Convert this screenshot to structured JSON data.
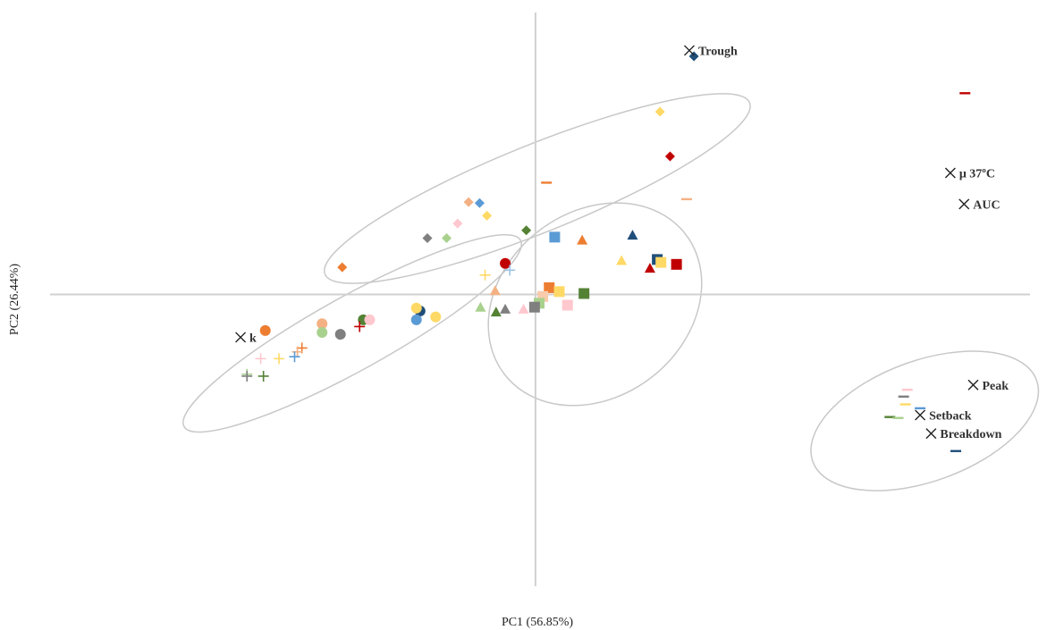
{
  "chart_data": {
    "type": "scatter",
    "xlabel": "PC1 (56.85%)",
    "ylabel": "PC2 (26.44%)",
    "xlim": [
      -5.3,
      5.4
    ],
    "ylim": [
      -3.0,
      2.9
    ],
    "grid": false,
    "legend": "none",
    "palette": {
      "orange": "#ED7D31",
      "light_orange": "#F4B183",
      "salmon": "#F8CBAD",
      "blue": "#5B9BD5",
      "dark_blue": "#1F4E79",
      "navy": "#203864",
      "yellow": "#FFD966",
      "red": "#C00000",
      "dark_red": "#A50021",
      "dark_green": "#548235",
      "green": "#70AD47",
      "light_green": "#A9D18E",
      "grey": "#7F7F7F",
      "pink": "#FFC7CE",
      "light_blue": "#9DC3E6"
    },
    "series": [
      {
        "marker": "diamond",
        "points": [
          {
            "x": 1.73,
            "y": 2.45,
            "color": "#1F4E79"
          },
          {
            "x": 1.36,
            "y": 1.88,
            "color": "#FFD966"
          },
          {
            "x": 1.47,
            "y": 1.42,
            "color": "#C00000"
          },
          {
            "x": -0.73,
            "y": 0.95,
            "color": "#F4B183"
          },
          {
            "x": -0.61,
            "y": 0.94,
            "color": "#5B9BD5"
          },
          {
            "x": -0.85,
            "y": 0.73,
            "color": "#FFC7CE"
          },
          {
            "x": -0.53,
            "y": 0.81,
            "color": "#FFD966"
          },
          {
            "x": -1.18,
            "y": 0.58,
            "color": "#7F7F7F"
          },
          {
            "x": -0.97,
            "y": 0.58,
            "color": "#A9D18E"
          },
          {
            "x": -0.1,
            "y": 0.66,
            "color": "#548235"
          },
          {
            "x": -2.11,
            "y": 0.28,
            "color": "#ED7D31"
          }
        ]
      },
      {
        "marker": "triangle",
        "points": [
          {
            "x": 1.06,
            "y": 0.61,
            "color": "#1F4E79"
          },
          {
            "x": 0.51,
            "y": 0.56,
            "color": "#ED7D31"
          },
          {
            "x": 0.94,
            "y": 0.35,
            "color": "#FFD966"
          },
          {
            "x": 1.25,
            "y": 0.27,
            "color": "#C00000"
          },
          {
            "x": -0.44,
            "y": 0.04,
            "color": "#F4B183"
          },
          {
            "x": -0.6,
            "y": -0.13,
            "color": "#A9D18E"
          },
          {
            "x": -0.43,
            "y": -0.18,
            "color": "#548235"
          },
          {
            "x": -0.33,
            "y": -0.15,
            "color": "#7F7F7F"
          },
          {
            "x": -0.13,
            "y": -0.15,
            "color": "#FFC7CE"
          }
        ]
      },
      {
        "marker": "square",
        "points": [
          {
            "x": 0.21,
            "y": 0.59,
            "color": "#5B9BD5"
          },
          {
            "x": 1.33,
            "y": 0.36,
            "color": "#1F4E79"
          },
          {
            "x": 1.37,
            "y": 0.33,
            "color": "#FFD966"
          },
          {
            "x": 1.54,
            "y": 0.31,
            "color": "#C00000"
          },
          {
            "x": 0.15,
            "y": 0.07,
            "color": "#ED7D31"
          },
          {
            "x": 0.26,
            "y": 0.03,
            "color": "#FFD966"
          },
          {
            "x": 0.53,
            "y": 0.01,
            "color": "#548235"
          },
          {
            "x": 0.08,
            "y": -0.02,
            "color": "#F8CBAD"
          },
          {
            "x": 0.04,
            "y": -0.09,
            "color": "#A9D18E"
          },
          {
            "x": -0.01,
            "y": -0.13,
            "color": "#7F7F7F"
          },
          {
            "x": 0.35,
            "y": -0.11,
            "color": "#FFC7CE"
          }
        ]
      },
      {
        "marker": "circle",
        "points": [
          {
            "x": -0.33,
            "y": 0.32,
            "color": "#C00000"
          },
          {
            "x": -1.26,
            "y": -0.17,
            "color": "#1F4E79"
          },
          {
            "x": -1.3,
            "y": -0.14,
            "color": "#FFD966"
          },
          {
            "x": -1.3,
            "y": -0.26,
            "color": "#5B9BD5"
          },
          {
            "x": -1.09,
            "y": -0.23,
            "color": "#FFD966"
          },
          {
            "x": -1.88,
            "y": -0.26,
            "color": "#548235"
          },
          {
            "x": -1.81,
            "y": -0.26,
            "color": "#FFC7CE"
          },
          {
            "x": -2.33,
            "y": -0.3,
            "color": "#F4B183"
          },
          {
            "x": -2.33,
            "y": -0.39,
            "color": "#A9D18E"
          },
          {
            "x": -2.13,
            "y": -0.41,
            "color": "#7F7F7F"
          },
          {
            "x": -2.95,
            "y": -0.37,
            "color": "#ED7D31"
          }
        ]
      },
      {
        "marker": "plus",
        "points": [
          {
            "x": -0.28,
            "y": 0.25,
            "color": "#9DC3E6"
          },
          {
            "x": -0.55,
            "y": 0.2,
            "color": "#FFD966"
          },
          {
            "x": -1.92,
            "y": -0.33,
            "color": "#C00000"
          },
          {
            "x": -2.55,
            "y": -0.55,
            "color": "#ED7D31"
          },
          {
            "x": -2.6,
            "y": -0.59,
            "color": "#F4B183"
          },
          {
            "x": -2.63,
            "y": -0.64,
            "color": "#5B9BD5"
          },
          {
            "x": -2.8,
            "y": -0.66,
            "color": "#FFD966"
          },
          {
            "x": -3.0,
            "y": -0.66,
            "color": "#FFC7CE"
          },
          {
            "x": -3.15,
            "y": -0.82,
            "color": "#A9D18E"
          },
          {
            "x": -2.97,
            "y": -0.84,
            "color": "#548235"
          },
          {
            "x": -3.15,
            "y": -0.84,
            "color": "#7F7F7F"
          }
        ]
      },
      {
        "marker": "dash",
        "points": [
          {
            "x": 4.69,
            "y": 2.07,
            "color": "#C00000"
          },
          {
            "x": 0.12,
            "y": 1.15,
            "color": "#ED7D31"
          },
          {
            "x": 1.65,
            "y": 0.98,
            "color": "#F4B183"
          },
          {
            "x": 4.06,
            "y": -0.98,
            "color": "#FFC7CE"
          },
          {
            "x": 4.02,
            "y": -1.05,
            "color": "#7F7F7F"
          },
          {
            "x": 4.04,
            "y": -1.13,
            "color": "#FFD966"
          },
          {
            "x": 4.2,
            "y": -1.17,
            "color": "#5B9BD5"
          },
          {
            "x": 3.87,
            "y": -1.26,
            "color": "#548235"
          },
          {
            "x": 3.96,
            "y": -1.27,
            "color": "#A9D18E"
          },
          {
            "x": 4.59,
            "y": -1.61,
            "color": "#1F4E79"
          }
        ]
      }
    ],
    "variables": [
      {
        "label": "Trough",
        "x": 1.68,
        "y": 2.51
      },
      {
        "label": "μ 37ºC",
        "x": 4.53,
        "y": 1.25
      },
      {
        "label": "AUC",
        "x": 4.68,
        "y": 0.93
      },
      {
        "label": "k",
        "x": -3.22,
        "y": -0.44
      },
      {
        "label": "Peak",
        "x": 4.78,
        "y": -0.93
      },
      {
        "label": "Setback",
        "x": 4.2,
        "y": -1.24
      },
      {
        "label": "Breakdown",
        "x": 4.32,
        "y": -1.43
      }
    ],
    "ellipses": [
      {
        "cx": 0.02,
        "cy": 1.09,
        "rx": 2.5,
        "ry": 0.45,
        "angle_deg": -22
      },
      {
        "cx": -2.0,
        "cy": -0.4,
        "rx": 2.1,
        "ry": 0.38,
        "angle_deg": -29
      },
      {
        "cx": 0.65,
        "cy": -0.1,
        "rx": 1.25,
        "ry": 0.95,
        "angle_deg": -38
      },
      {
        "cx": 4.25,
        "cy": -1.3,
        "rx": 1.3,
        "ry": 0.62,
        "angle_deg": -20
      }
    ]
  }
}
